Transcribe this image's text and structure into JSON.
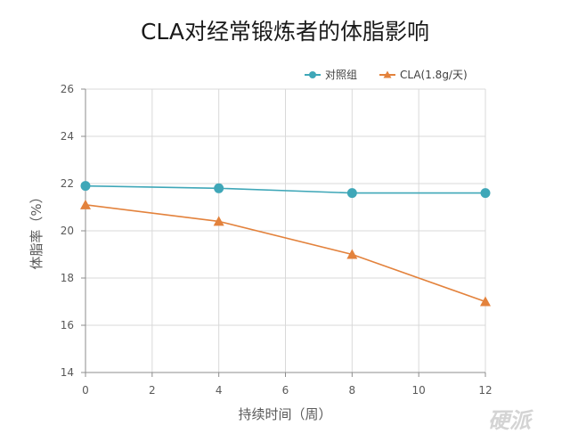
{
  "chart_data": {
    "type": "line",
    "title": "CLA对经常锻炼者的体脂影响",
    "xlabel": "持续时间（周）",
    "ylabel": "体脂率（%）",
    "xlim": [
      0,
      12
    ],
    "ylim": [
      14,
      26
    ],
    "xticks": [
      "0",
      "2",
      "4",
      "6",
      "8",
      "10",
      "12"
    ],
    "yticks": [
      "14",
      "16",
      "18",
      "20",
      "22",
      "24",
      "26"
    ],
    "grid": true,
    "legend_position": "top-right",
    "series": [
      {
        "name": "对照组",
        "color": "#3fa7b8",
        "marker": "circle",
        "x": [
          0,
          4,
          8,
          12
        ],
        "values": [
          21.9,
          21.8,
          21.6,
          21.6
        ]
      },
      {
        "name": "CLA(1.8g/天)",
        "color": "#e3823c",
        "marker": "triangle",
        "x": [
          0,
          4,
          8,
          12
        ],
        "values": [
          21.1,
          20.4,
          19.0,
          17.0
        ]
      }
    ]
  },
  "watermark": "硬派"
}
